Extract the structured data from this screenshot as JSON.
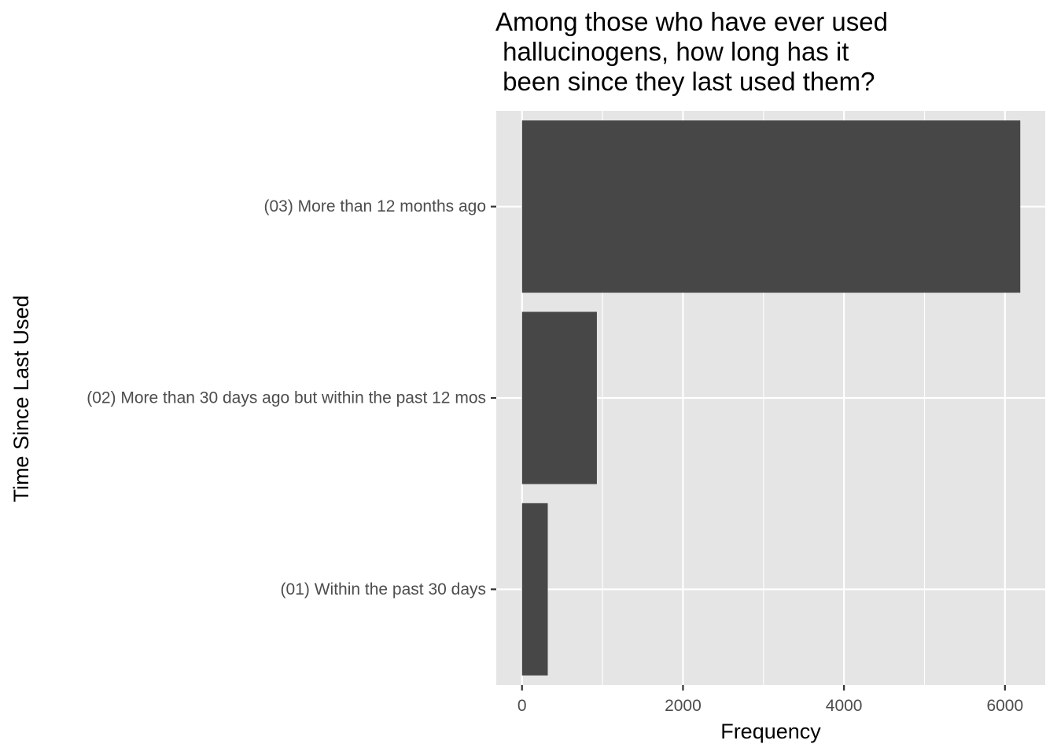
{
  "chart_data": {
    "type": "bar",
    "orientation": "horizontal",
    "title_lines": [
      "Among those who have ever used",
      " hallucinogens, how long has it",
      " been since they last used them?"
    ],
    "xlabel": "Frequency",
    "ylabel": "Time Since Last Used",
    "categories": [
      "(01) Within the past 30 days",
      "(02) More than 30 days ago but within the past 12 mos",
      "(03) More than 12 months ago"
    ],
    "values": [
      320,
      930,
      6190
    ],
    "xlim": [
      -320,
      6500
    ],
    "x_ticks": [
      0,
      2000,
      4000,
      6000
    ],
    "x_tick_labels": [
      "0",
      "2000",
      "4000",
      "6000"
    ],
    "x_minor_ticks": [
      1000,
      3000,
      5000
    ],
    "grid": true,
    "colors": {
      "panel": "#e5e5e5",
      "grid": "#ffffff",
      "bar": "#474747",
      "tick": "#333333",
      "tick_label": "#4d4d4d"
    }
  }
}
